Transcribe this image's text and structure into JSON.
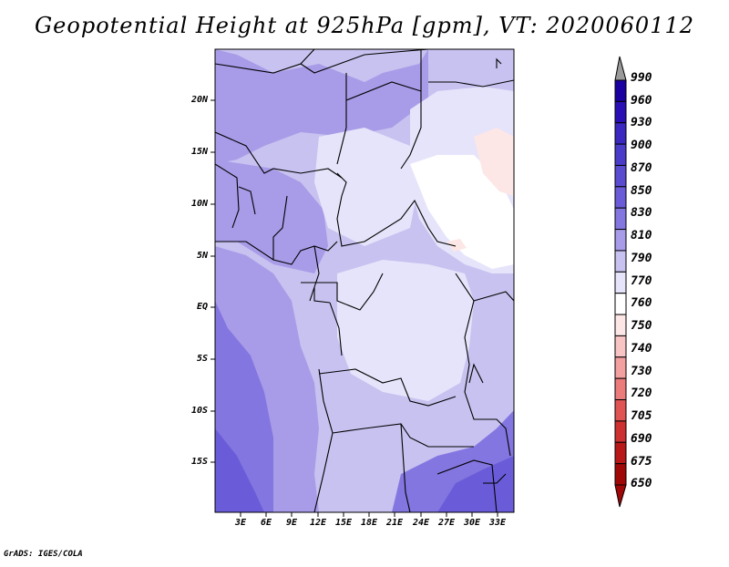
{
  "title": "Geopotential Height at 925hPa [gpm], VT: 2020060112",
  "footer": "GrADS: IGES/COLA",
  "map": {
    "lat_labels": [
      "20N",
      "15N",
      "10N",
      "5N",
      "EQ",
      "5S",
      "10S",
      "15S"
    ],
    "lon_labels": [
      "3E",
      "6E",
      "9E",
      "12E",
      "15E",
      "18E",
      "21E",
      "24E",
      "27E",
      "30E",
      "33E"
    ]
  },
  "colorbar": {
    "labels": [
      "990",
      "960",
      "930",
      "900",
      "870",
      "850",
      "830",
      "810",
      "790",
      "770",
      "760",
      "750",
      "740",
      "730",
      "720",
      "705",
      "690",
      "675",
      "650"
    ],
    "colors": [
      "#1a00a0",
      "#2a10b4",
      "#3a28c0",
      "#4a3cc8",
      "#5a4cd0",
      "#6a5cd8",
      "#8476e0",
      "#a89ce8",
      "#c8c2f0",
      "#e6e4fa",
      "#ffffff",
      "#fde6e6",
      "#f8c4c4",
      "#f2a0a0",
      "#ec7c7c",
      "#e05454",
      "#cc3030",
      "#b81818",
      "#a00808"
    ],
    "top_arrow_color": "#9a9a9a"
  }
}
